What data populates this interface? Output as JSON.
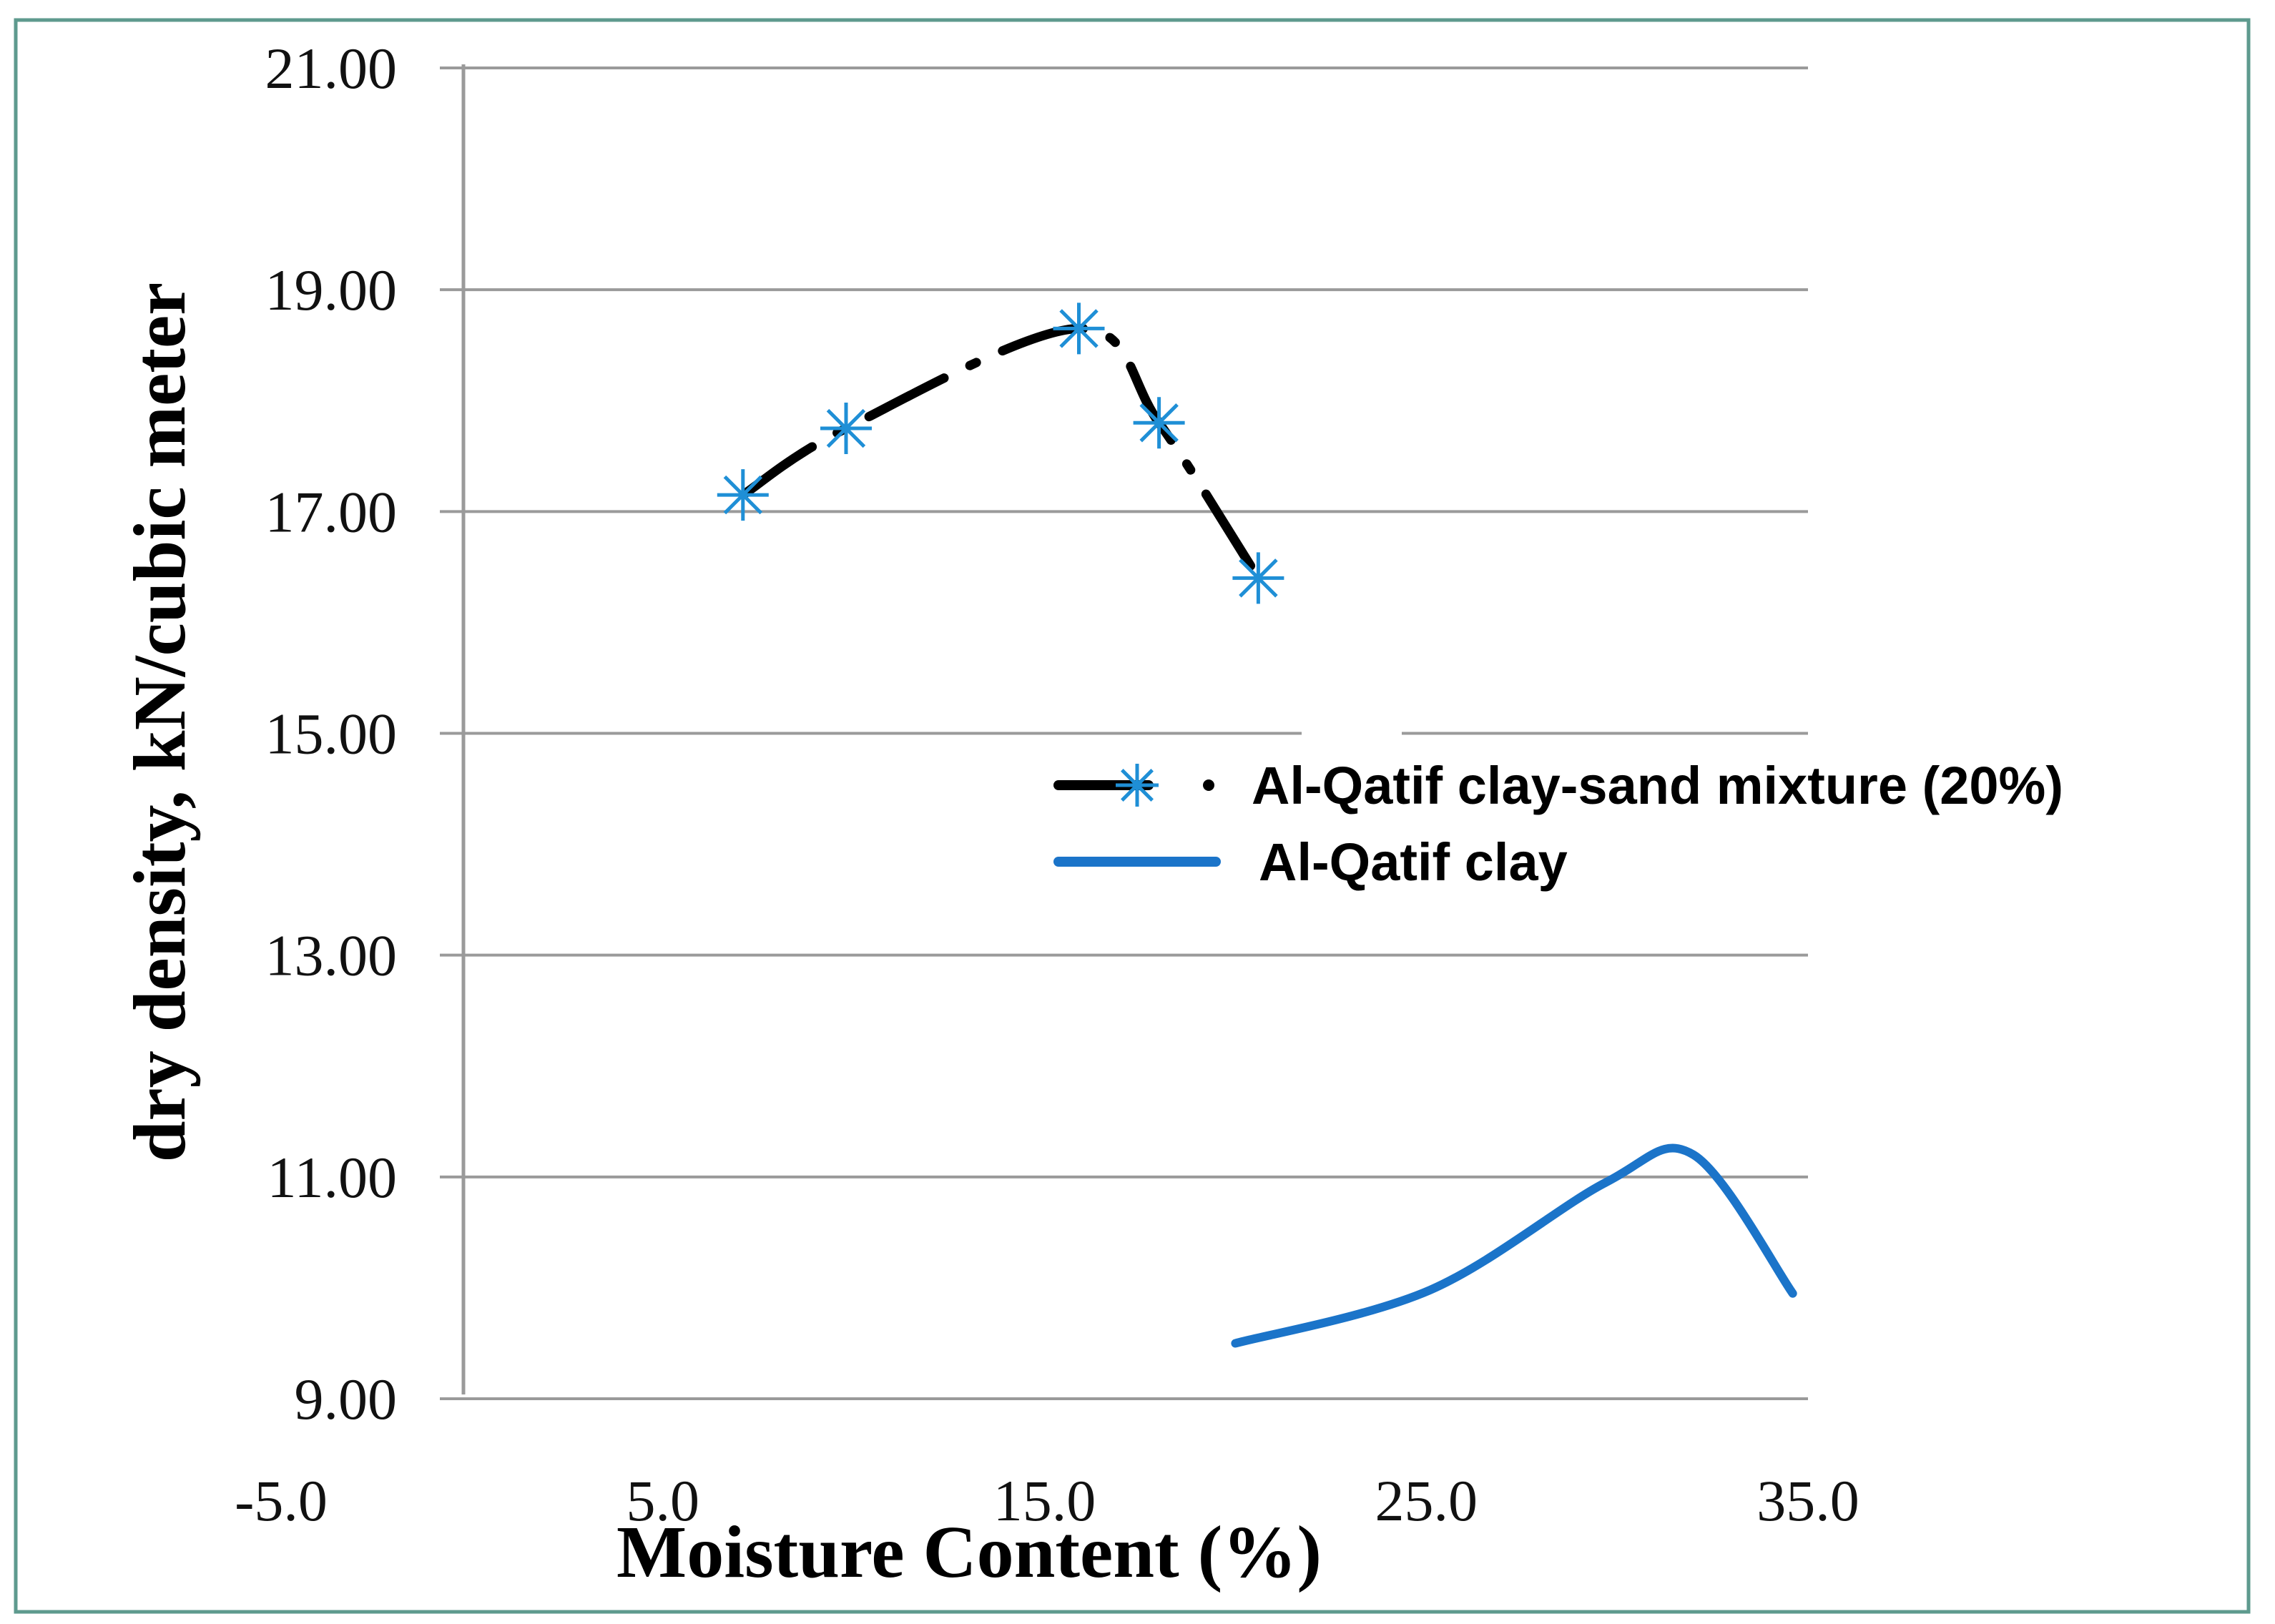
{
  "chart_data": {
    "type": "line",
    "xlabel": "Moisture Content (%)",
    "ylabel": "dry density, kN/cubic meter",
    "xlim": [
      -5.0,
      35.0
    ],
    "ylim": [
      9.0,
      21.0
    ],
    "x_ticks": [
      "-5.0",
      "5.0",
      "15.0",
      "25.0",
      "35.0"
    ],
    "y_ticks": [
      "9.00",
      "11.00",
      "13.00",
      "15.00",
      "17.00",
      "19.00",
      "21.00"
    ],
    "grid": "horizontal",
    "legend_position": "center-right",
    "series": [
      {
        "name": "Al-Qatif clay-sand mixture (20%)",
        "style": "dash-dot",
        "line_color": "#000000",
        "marker": "asterisk",
        "marker_color": "#1f8fd6",
        "x": [
          7.1,
          9.8,
          15.9,
          18.0,
          20.6
        ],
        "y": [
          17.15,
          17.75,
          18.65,
          17.8,
          16.4
        ]
      },
      {
        "name": "Al-Qatif clay",
        "style": "solid",
        "line_color": "#1b74c9",
        "marker": "none",
        "x": [
          20.0,
          25.1,
          29.7,
          32.0,
          34.6
        ],
        "y": [
          9.5,
          9.98,
          10.95,
          11.2,
          9.95
        ]
      }
    ]
  }
}
